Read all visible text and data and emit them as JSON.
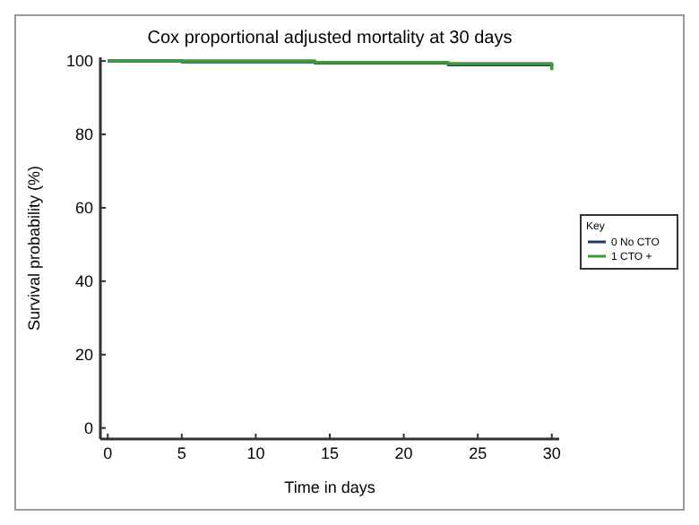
{
  "chart_data": {
    "type": "step",
    "title": "Cox proportional adjusted mortality at 30 days",
    "xlabel": "Time in days",
    "ylabel": "Survival probability (%)",
    "legend_title": "Key",
    "legend": "right",
    "xlim": [
      -0.5,
      30.5
    ],
    "ylim": [
      -3,
      101
    ],
    "xticks": [
      0,
      5,
      10,
      15,
      20,
      25,
      30
    ],
    "yticks": [
      0,
      20,
      40,
      60,
      80,
      100
    ],
    "grid": false,
    "series": [
      {
        "name": "0 No CTO",
        "color": "#1f3a5f",
        "x": [
          0,
          5,
          14,
          23,
          30
        ],
        "values": [
          100,
          99.8,
          99.5,
          99,
          98.8
        ]
      },
      {
        "name": "1 CTO +",
        "color": "#3c9a3c",
        "x": [
          0,
          13,
          14,
          23,
          30
        ],
        "values": [
          100,
          100,
          99.6,
          99.3,
          97.5
        ]
      }
    ]
  }
}
